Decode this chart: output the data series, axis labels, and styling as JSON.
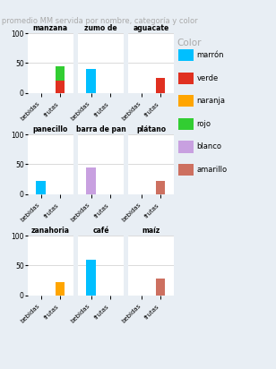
{
  "title": "Cant. promedio MM servida por nombre, categoría y color",
  "legend_title": "Color",
  "colors": {
    "marrón": "#00BFFF",
    "verde": "#E03020",
    "naranja": "#FFA500",
    "rojo": "#32CD32",
    "blanco": "#C8A0E0",
    "amarillo": "#CD7060"
  },
  "categories": [
    "bebidas",
    "frutas"
  ],
  "groups": [
    {
      "row": 0,
      "names": [
        "manzana",
        "zumo de",
        "aguacate"
      ],
      "bars": {
        "manzana": {
          "bebidas": {},
          "frutas": {
            "verde": 20,
            "rojo": 25
          }
        },
        "zumo de": {
          "bebidas": {
            "marrón": 40
          },
          "frutas": {}
        },
        "aguacate": {
          "bebidas": {},
          "frutas": {
            "verde": 25
          }
        }
      }
    },
    {
      "row": 1,
      "names": [
        "panecillo",
        "barra de pan",
        "plátano"
      ],
      "bars": {
        "panecillo": {
          "bebidas": {
            "marrón": 22
          },
          "frutas": {}
        },
        "barra de pan": {
          "bebidas": {
            "blanco": 45
          },
          "frutas": {}
        },
        "plátano": {
          "bebidas": {},
          "frutas": {
            "amarillo": 22
          }
        }
      }
    },
    {
      "row": 2,
      "names": [
        "zanahoria",
        "café",
        "maíz"
      ],
      "bars": {
        "zanahoria": {
          "bebidas": {},
          "frutas": {
            "naranja": 22
          }
        },
        "café": {
          "bebidas": {
            "marrón": 60
          },
          "frutas": {}
        },
        "maíz": {
          "bebidas": {},
          "frutas": {
            "amarillo": 28
          }
        }
      }
    }
  ],
  "ylim": [
    0,
    100
  ],
  "yticks": [
    0,
    50,
    100
  ],
  "background": "#E8EEF4",
  "plot_background": "#FFFFFF",
  "title_color": "#AAAAAA",
  "legend_title_color": "#AAAAAA",
  "legend_items": [
    "marrón",
    "verde",
    "naranja",
    "rojo",
    "blanco",
    "amarillo"
  ]
}
